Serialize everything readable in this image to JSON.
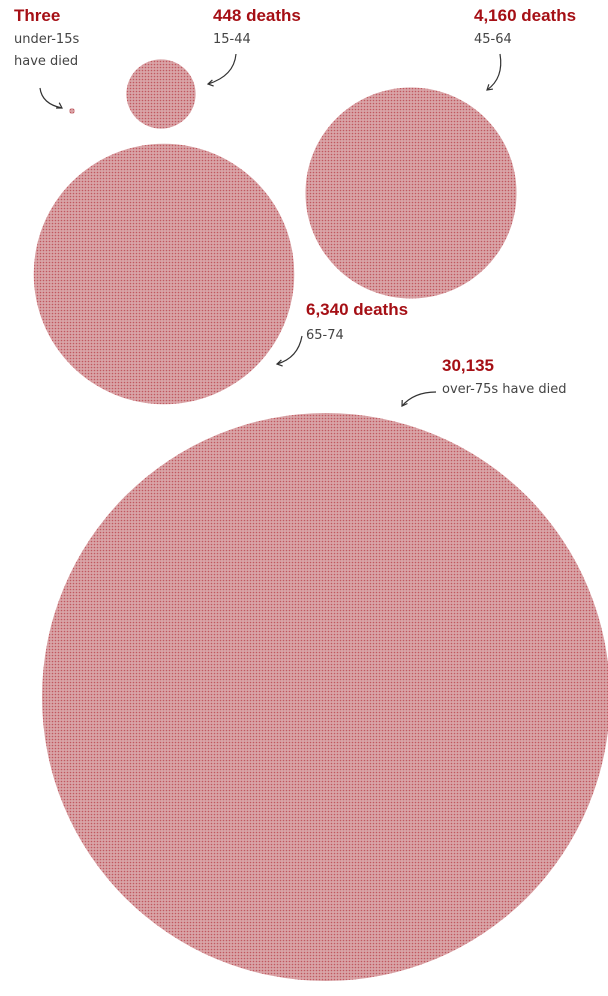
{
  "chart_data": {
    "type": "bubble",
    "series": [
      {
        "value": 3,
        "headline": "Three",
        "note": "under-15s have died",
        "note_lines": [
          "under-15s",
          "have died"
        ]
      },
      {
        "value": 448,
        "headline": "448 deaths",
        "note": "15-44"
      },
      {
        "value": 4160,
        "headline": "4,160 deaths",
        "note": "45-64"
      },
      {
        "value": 6340,
        "headline": "6,340 deaths",
        "note": "65-74"
      },
      {
        "value": 30135,
        "headline": "30,135",
        "note": "over-75s have died"
      }
    ]
  },
  "colors": {
    "bubble_fill": "#d9a4a7",
    "bubble_dot": "#c0585f",
    "headline": "#a50f15",
    "note": "#444444",
    "arrow": "#333333"
  }
}
